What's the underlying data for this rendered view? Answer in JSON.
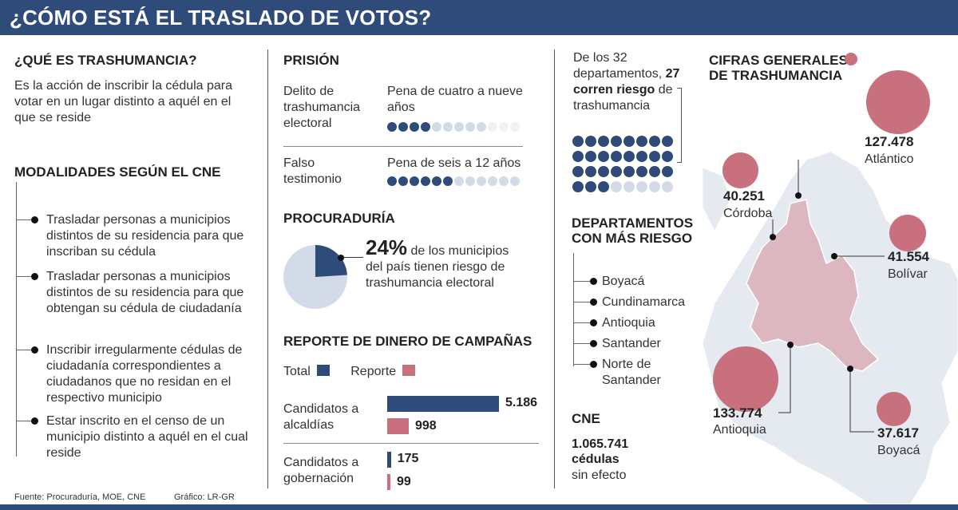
{
  "title": "¿CÓMO ESTÁ EL TRASLADO DE VOTOS?",
  "colors": {
    "navy": "#2e4b7a",
    "pink": "#c9707e",
    "light_dot": "#d4dbe8",
    "map_fill": "#e5e9f0",
    "pie_light": "#d4dbe8"
  },
  "trashumancia": {
    "heading": "¿QUÉ ES TRASHUMANCIA?",
    "definition": "Es la acción de inscribir la cédula para votar en un lugar distinto a aquél en el que se reside"
  },
  "modalidades": {
    "heading": "MODALIDADES SEGÚN EL CNE",
    "items": [
      "Trasladar personas a municipios distintos de su residencia para que inscriban su cédula",
      "Trasladar personas a municipios distintos de su residencia para que obtengan su cédula de ciudadanía",
      "Inscribir irregularmente cédulas de ciudadanía correspondientes a ciudadanos que no residan en el respectivo municipio",
      "Estar inscrito en el censo de un municipio distinto a aquél en el cual reside"
    ]
  },
  "prision": {
    "heading": "PRISIÓN",
    "rows": [
      {
        "label": "Delito de trashumancia electoral",
        "pena": "Pena de cuatro a nueve años",
        "min_years": 4,
        "max_years": 9,
        "total_dots": 12
      },
      {
        "label": "Falso testimonio",
        "pena": "Pena de seis a 12 años",
        "min_years": 6,
        "max_years": 12,
        "total_dots": 12
      }
    ]
  },
  "procuraduria": {
    "heading": "PROCURADURÍA",
    "percent_label": "24%",
    "percent_value": 24,
    "text": "de los municipios del país tienen riesgo de trashumancia electoral"
  },
  "reporte": {
    "heading": "REPORTE DE DINERO DE CAMPAÑAS",
    "legend_total": "Total",
    "legend_reporte": "Reporte",
    "groups": [
      {
        "label": "Candidatos a alcaldías",
        "total": 5186,
        "total_label": "5.186",
        "reporte": 998,
        "reporte_label": "998"
      },
      {
        "label": "Candidatos a gobernación",
        "total": 175,
        "total_label": "175",
        "reporte": 99,
        "reporte_label": "99"
      }
    ]
  },
  "departamentos": {
    "intro_1": "De los 32 departamentos,",
    "intro_bold": "27 corren riesgo",
    "intro_2": "de trashumancia",
    "total": 32,
    "at_risk": 27,
    "heading": "DEPARTAMENTOS CON MÁS RIESGO",
    "list": [
      "Boyacá",
      "Cundinamarca",
      "Antioquia",
      "Santander",
      "Norte de Santander"
    ]
  },
  "cne": {
    "heading": "CNE",
    "value": "1.065.741",
    "value_unit": "cédulas",
    "text": "sin efecto"
  },
  "cifras": {
    "heading": "CIFRAS GENERALES DE TRASHUMANCIA",
    "items": [
      {
        "value": "127.478",
        "name": "Atlántico",
        "amount": 127478
      },
      {
        "value": "40.251",
        "name": "Córdoba",
        "amount": 40251
      },
      {
        "value": "41.554",
        "name": "Bolívar",
        "amount": 41554
      },
      {
        "value": "133.774",
        "name": "Antioquia",
        "amount": 133774
      },
      {
        "value": "37.617",
        "name": "Boyacá",
        "amount": 37617
      }
    ]
  },
  "footer": {
    "source": "Fuente: Procuraduría, MOE, CNE",
    "credit": "Gráfico: LR-GR"
  }
}
